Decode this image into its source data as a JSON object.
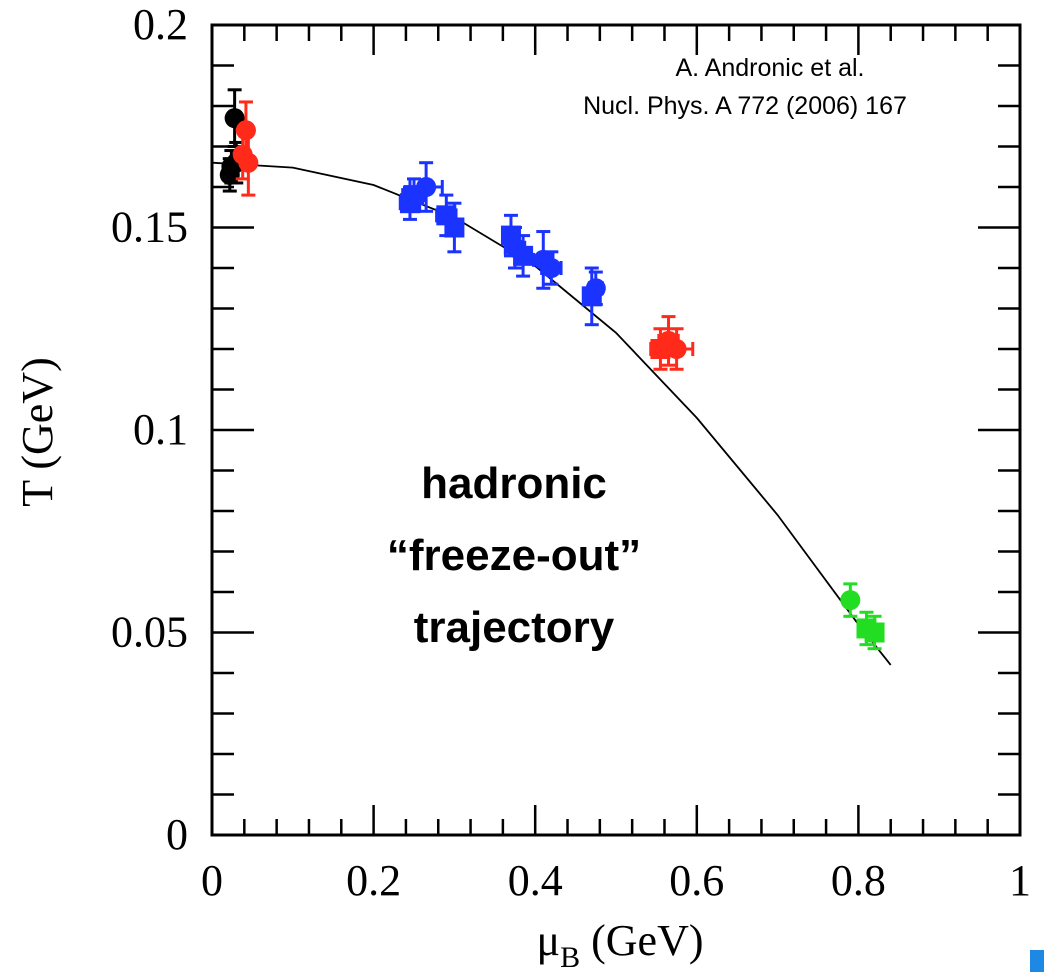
{
  "chart_data": {
    "type": "scatter",
    "xlabel": "μ",
    "xlabel_sub": "B",
    "xlabel_unit": " (GeV)",
    "ylabel": "T (GeV)",
    "xlim": [
      0,
      1
    ],
    "ylim": [
      0,
      0.2
    ],
    "x_ticks": [
      "0",
      "0.2",
      "0.4",
      "0.6",
      "0.8",
      "1"
    ],
    "y_ticks": [
      "0",
      "0.05",
      "0.1",
      "0.15",
      "0.2"
    ],
    "x_tick_values": [
      0,
      0.2,
      0.4,
      0.6,
      0.8,
      1.0
    ],
    "y_tick_values": [
      0,
      0.05,
      0.1,
      0.15,
      0.2
    ],
    "grid": false,
    "annotation": {
      "reference_line1": "A. Andronic et al.",
      "reference_line2": "Nucl. Phys.  A 772 (2006) 167",
      "overlay_line1": "hadronic",
      "overlay_line2": "“freeze-out”",
      "overlay_line3": "trajectory"
    },
    "curve": {
      "description_values": [
        [
          0.0,
          0.166
        ],
        [
          0.1,
          0.1648
        ],
        [
          0.2,
          0.1605
        ],
        [
          0.3,
          0.1525
        ],
        [
          0.4,
          0.1405
        ],
        [
          0.5,
          0.124
        ],
        [
          0.6,
          0.103
        ],
        [
          0.7,
          0.079
        ],
        [
          0.8,
          0.052
        ],
        [
          0.84,
          0.042
        ]
      ]
    },
    "series": [
      {
        "color": "#000000",
        "points": [
          {
            "x": 0.022,
            "y": 0.163,
            "xerr": 0.003,
            "yerr": 0.004,
            "shape": "circle"
          },
          {
            "x": 0.024,
            "y": 0.165,
            "xerr": 0.003,
            "yerr": 0.004,
            "shape": "circle"
          },
          {
            "x": 0.028,
            "y": 0.177,
            "xerr": 0.003,
            "yerr": 0.007,
            "shape": "circle"
          },
          {
            "x": 0.03,
            "y": 0.166,
            "xerr": 0.003,
            "yerr": 0.005,
            "shape": "circle"
          }
        ]
      },
      {
        "color": "#ff2a1a",
        "points": [
          {
            "x": 0.038,
            "y": 0.168,
            "xerr": 0.004,
            "yerr": 0.006,
            "shape": "circle"
          },
          {
            "x": 0.042,
            "y": 0.174,
            "xerr": 0.004,
            "yerr": 0.007,
            "shape": "circle"
          },
          {
            "x": 0.045,
            "y": 0.166,
            "xerr": 0.004,
            "yerr": 0.008,
            "shape": "circle"
          },
          {
            "x": 0.555,
            "y": 0.12,
            "xerr": 0.012,
            "yerr": 0.005,
            "shape": "square"
          },
          {
            "x": 0.565,
            "y": 0.122,
            "xerr": 0.012,
            "yerr": 0.006,
            "shape": "circle"
          },
          {
            "x": 0.575,
            "y": 0.12,
            "xerr": 0.02,
            "yerr": 0.005,
            "shape": "circle"
          }
        ]
      },
      {
        "color": "#1a33ff",
        "points": [
          {
            "x": 0.245,
            "y": 0.156,
            "xerr": 0.012,
            "yerr": 0.004,
            "shape": "square"
          },
          {
            "x": 0.25,
            "y": 0.158,
            "xerr": 0.014,
            "yerr": 0.004,
            "shape": "square"
          },
          {
            "x": 0.265,
            "y": 0.16,
            "xerr": 0.02,
            "yerr": 0.006,
            "shape": "circle"
          },
          {
            "x": 0.29,
            "y": 0.153,
            "xerr": 0.012,
            "yerr": 0.005,
            "shape": "square"
          },
          {
            "x": 0.3,
            "y": 0.15,
            "xerr": 0.01,
            "yerr": 0.006,
            "shape": "square"
          },
          {
            "x": 0.37,
            "y": 0.148,
            "xerr": 0.01,
            "yerr": 0.005,
            "shape": "square"
          },
          {
            "x": 0.375,
            "y": 0.145,
            "xerr": 0.012,
            "yerr": 0.005,
            "shape": "circle"
          },
          {
            "x": 0.385,
            "y": 0.143,
            "xerr": 0.01,
            "yerr": 0.005,
            "shape": "square"
          },
          {
            "x": 0.41,
            "y": 0.142,
            "xerr": 0.012,
            "yerr": 0.007,
            "shape": "circle"
          },
          {
            "x": 0.42,
            "y": 0.14,
            "xerr": 0.012,
            "yerr": 0.004,
            "shape": "circle"
          },
          {
            "x": 0.47,
            "y": 0.133,
            "xerr": 0.008,
            "yerr": 0.007,
            "shape": "square"
          },
          {
            "x": 0.475,
            "y": 0.135,
            "xerr": 0.008,
            "yerr": 0.004,
            "shape": "circle"
          }
        ]
      },
      {
        "color": "#22dd22",
        "points": [
          {
            "x": 0.79,
            "y": 0.058,
            "xerr": 0.005,
            "yerr": 0.004,
            "shape": "circle"
          },
          {
            "x": 0.81,
            "y": 0.051,
            "xerr": 0.008,
            "yerr": 0.004,
            "shape": "square"
          },
          {
            "x": 0.82,
            "y": 0.05,
            "xerr": 0.008,
            "yerr": 0.004,
            "shape": "square"
          }
        ]
      }
    ]
  }
}
